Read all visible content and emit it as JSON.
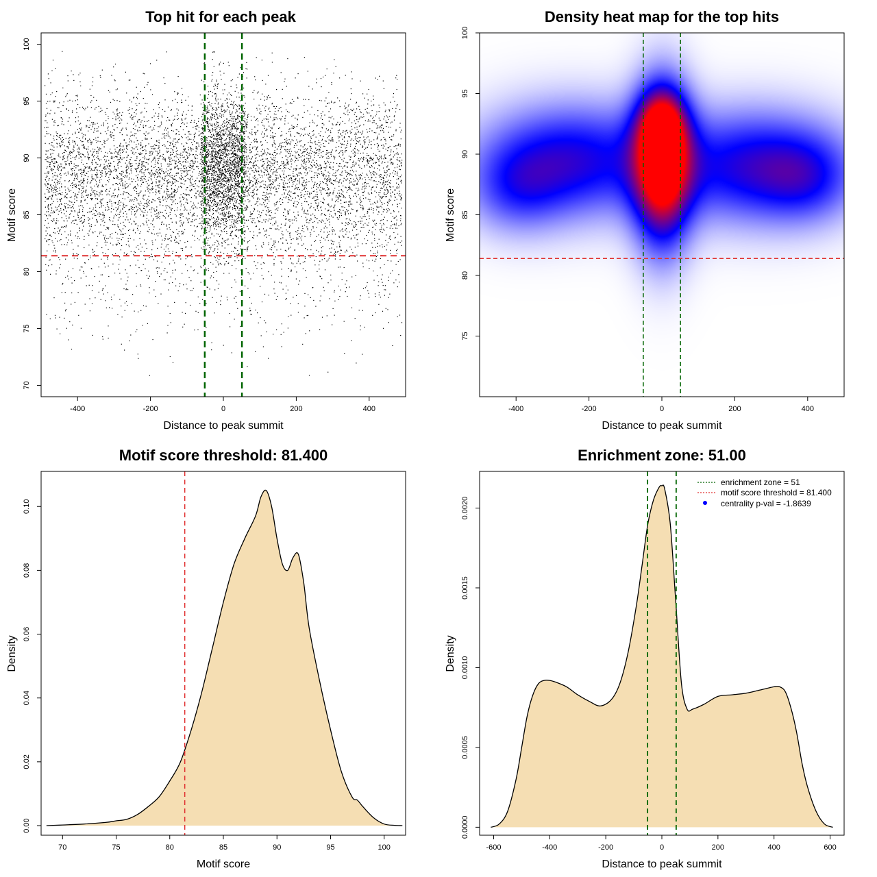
{
  "chart_data": [
    {
      "type": "scatter",
      "title": "Top hit for each peak",
      "xlabel": "Distance to peak summit",
      "ylabel": "Motif score",
      "xlim": [
        -500,
        500
      ],
      "ylim": [
        69,
        101
      ],
      "xticks": [
        -400,
        -200,
        0,
        200,
        400
      ],
      "yticks": [
        70,
        75,
        80,
        85,
        90,
        95,
        100
      ],
      "vlines": [
        -51,
        51
      ],
      "hline": 81.4,
      "colors": {
        "points": "#000000",
        "vline": "#006400",
        "hline": "#e03030"
      },
      "point_count_note": "dense cloud of ~9000 points",
      "points": {
        "n": 9000,
        "bands": [
          {
            "xlo": -490,
            "xhi": 490,
            "ymean": 88.5,
            "ysd": 3.6,
            "weight": 0.72
          },
          {
            "xlo": -60,
            "xhi": 60,
            "ymean": 89.5,
            "ysd": 3.2,
            "weight": 0.2
          },
          {
            "xlo": -490,
            "xhi": 490,
            "ymean": 80.0,
            "ysd": 3.5,
            "weight": 0.08
          }
        ]
      }
    },
    {
      "type": "heatmap",
      "title": "Density heat map for the top hits",
      "xlabel": "Distance to peak summit",
      "ylabel": "Motif score",
      "xlim": [
        -500,
        500
      ],
      "ylim": [
        70,
        100
      ],
      "xticks": [
        -400,
        -200,
        0,
        200,
        400
      ],
      "yticks": [
        75,
        80,
        85,
        90,
        95,
        100
      ],
      "vlines": [
        -51,
        51
      ],
      "hline": 81.4,
      "colors": {
        "low": "#ffffff",
        "mid": "#0000ff",
        "high": "#ff0000",
        "vline": "#006400",
        "hline": "#e03030"
      },
      "blobs": [
        {
          "x": 0,
          "y": 89,
          "sx": 55,
          "sy": 4.5,
          "w": 1.0
        },
        {
          "x": 0,
          "y": 92.5,
          "sx": 45,
          "sy": 2.0,
          "w": 0.5
        },
        {
          "x": -250,
          "y": 89.5,
          "sx": 170,
          "sy": 3.2,
          "w": 0.55
        },
        {
          "x": 250,
          "y": 89,
          "sx": 170,
          "sy": 3.2,
          "w": 0.55
        },
        {
          "x": -400,
          "y": 87,
          "sx": 90,
          "sy": 2.5,
          "w": 0.25
        },
        {
          "x": 400,
          "y": 88,
          "sx": 90,
          "sy": 2.5,
          "w": 0.25
        }
      ]
    },
    {
      "type": "area",
      "title": "Motif score threshold: 81.400",
      "xlabel": "Motif score",
      "ylabel": "Density",
      "xlim": [
        68,
        102
      ],
      "ylim": [
        -0.003,
        0.111
      ],
      "xticks": [
        70,
        75,
        80,
        85,
        90,
        95,
        100
      ],
      "yticks": [
        0.0,
        0.02,
        0.04,
        0.06,
        0.08,
        0.1
      ],
      "ytick_labels": [
        "0.00",
        "0.02",
        "0.04",
        "0.06",
        "0.08",
        "0.10"
      ],
      "vline": 81.4,
      "colors": {
        "fill": "#f5deb3",
        "line": "#000000",
        "vline": "#e03030"
      },
      "x": [
        68.5,
        70,
        72,
        74,
        75,
        76,
        77,
        78,
        79,
        80,
        81,
        82,
        83,
        84,
        85,
        86,
        87,
        88,
        88.5,
        89,
        89.5,
        90,
        90.5,
        91,
        91.5,
        92,
        92.5,
        93,
        94,
        95,
        96,
        97,
        97.5,
        98,
        99,
        100,
        101,
        101.7
      ],
      "y": [
        0,
        0.0002,
        0.0005,
        0.001,
        0.0015,
        0.002,
        0.0035,
        0.006,
        0.009,
        0.014,
        0.02,
        0.03,
        0.042,
        0.056,
        0.07,
        0.082,
        0.09,
        0.097,
        0.103,
        0.105,
        0.1,
        0.09,
        0.082,
        0.08,
        0.084,
        0.085,
        0.076,
        0.062,
        0.045,
        0.03,
        0.017,
        0.009,
        0.008,
        0.006,
        0.0025,
        0.0005,
        0.0001,
        0
      ]
    },
    {
      "type": "area",
      "title": "Enrichment zone: 51.00",
      "xlabel": "Distance to peak summit",
      "ylabel": "Density",
      "xlim": [
        -650,
        650
      ],
      "ylim": [
        -5e-05,
        0.00223
      ],
      "xticks": [
        -600,
        -400,
        -200,
        0,
        200,
        400,
        600
      ],
      "yticks": [
        0.0,
        0.0005,
        0.001,
        0.0015,
        0.002
      ],
      "ytick_labels": [
        "0.0000",
        "0.0005",
        "0.0010",
        "0.0015",
        "0.0020"
      ],
      "vlines": [
        -51,
        51
      ],
      "colors": {
        "fill": "#f5deb3",
        "line": "#000000",
        "vline": "#006400",
        "hline": "#e03030",
        "dot": "#0000ff"
      },
      "x": [
        -610,
        -580,
        -550,
        -520,
        -500,
        -480,
        -460,
        -440,
        -420,
        -400,
        -380,
        -340,
        -300,
        -260,
        -220,
        -180,
        -150,
        -120,
        -90,
        -70,
        -50,
        -30,
        -10,
        0,
        10,
        30,
        50,
        70,
        90,
        110,
        150,
        200,
        250,
        300,
        350,
        400,
        420,
        440,
        460,
        480,
        500,
        520,
        550,
        580,
        610
      ],
      "y": [
        0,
        2e-05,
        0.0001,
        0.0003,
        0.0005,
        0.0007,
        0.00083,
        0.0009,
        0.00092,
        0.00092,
        0.00091,
        0.00088,
        0.00083,
        0.00079,
        0.00076,
        0.0008,
        0.0009,
        0.0011,
        0.0014,
        0.00165,
        0.0019,
        0.00205,
        0.00213,
        0.00214,
        0.00212,
        0.0019,
        0.0014,
        0.0009,
        0.00074,
        0.00074,
        0.00077,
        0.00082,
        0.00083,
        0.00084,
        0.00086,
        0.00088,
        0.00088,
        0.00085,
        0.00075,
        0.0006,
        0.0004,
        0.00025,
        0.0001,
        2e-05,
        0
      ]
    }
  ],
  "legend": {
    "items": [
      {
        "label": "enrichment zone = 51",
        "style": "dotted",
        "color": "#006400"
      },
      {
        "label": "motif score threshold = 81.400",
        "style": "dotted",
        "color": "#e03030"
      },
      {
        "label": "centrality p-val = -1.8639",
        "style": "dot",
        "color": "#0000ff"
      }
    ]
  }
}
